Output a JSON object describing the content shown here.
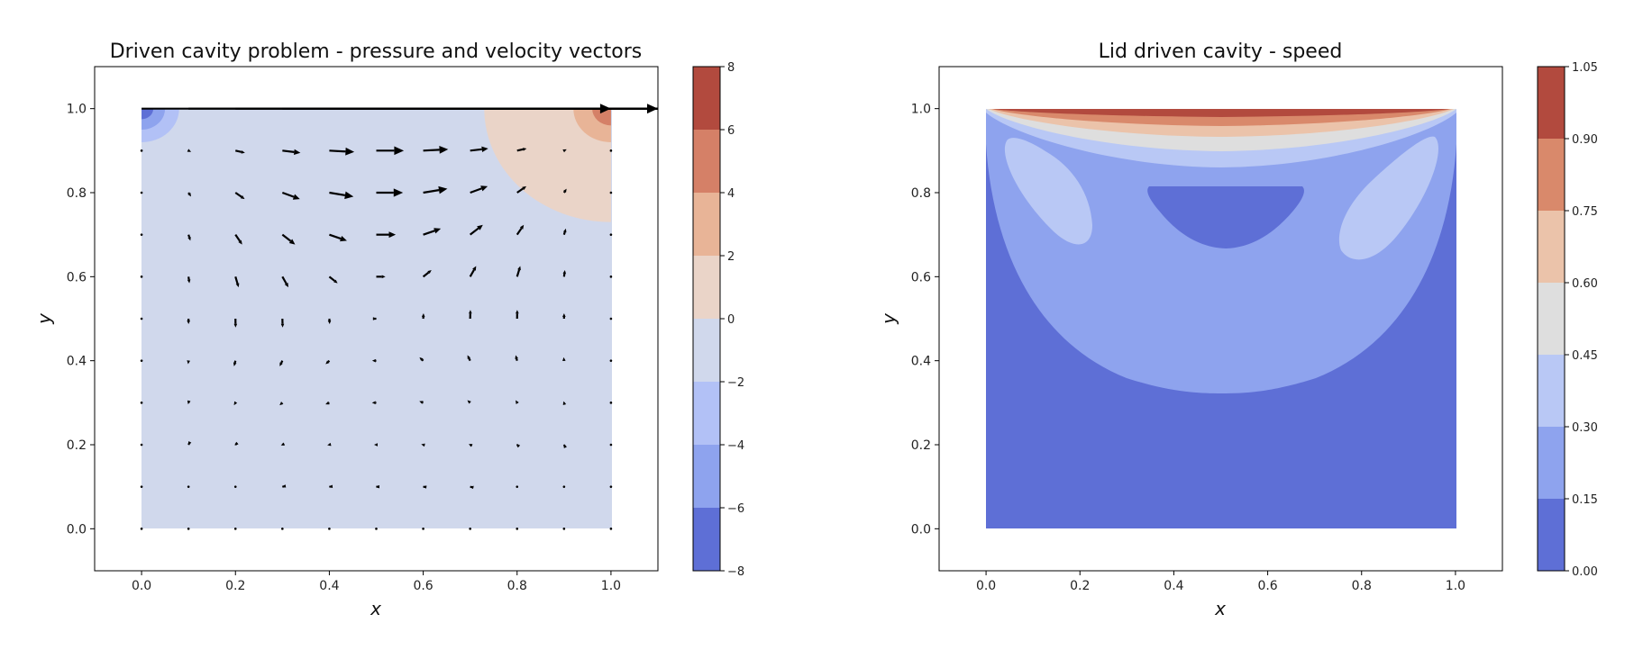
{
  "chart_data": [
    {
      "type": "contour",
      "title": "Driven cavity problem - pressure and velocity vectors",
      "xlabel": "x",
      "ylabel": "y",
      "xlim": [
        -0.1,
        1.1
      ],
      "ylim": [
        -0.1,
        1.1
      ],
      "xticks": [
        "0.0",
        "0.2",
        "0.4",
        "0.6",
        "0.8",
        "1.0"
      ],
      "yticks": [
        "0.0",
        "0.2",
        "0.4",
        "0.6",
        "0.8",
        "1.0"
      ],
      "grid": false,
      "colormap": "coolwarm",
      "colorbar": {
        "levels": [
          -8,
          -6,
          -4,
          -2,
          0,
          2,
          4,
          6,
          8
        ],
        "labels": [
          "−8",
          "−6",
          "−4",
          "−2",
          "0",
          "2",
          "4",
          "6",
          "8"
        ],
        "colors": [
          "#5e6fd6",
          "#8ea3ee",
          "#b2c1f6",
          "#d0d8ec",
          "#ead4c8",
          "#e8b497",
          "#d58067",
          "#b24a3e"
        ]
      },
      "background_level_color": "#d0d8ec",
      "pressure_regions": [
        {
          "corner": "top-left",
          "center": [
            0.0,
            1.0
          ],
          "radii": [
            0.08,
            0.05,
            0.025
          ],
          "colors": [
            "#b2c1f6",
            "#8ea3ee",
            "#5e6fd6"
          ]
        },
        {
          "corner": "top-right",
          "center": [
            1.0,
            1.0
          ],
          "radii": [
            0.27,
            0.08,
            0.04
          ],
          "colors": [
            "#ead4c8",
            "#e8b497",
            "#d58067"
          ]
        }
      ],
      "quiver_grid": {
        "x": [
          0.0,
          0.1,
          0.2,
          0.3,
          0.4,
          0.5,
          0.6,
          0.7,
          0.8,
          0.9,
          1.0
        ],
        "y": [
          0.0,
          0.1,
          0.2,
          0.3,
          0.4,
          0.5,
          0.6,
          0.7,
          0.8,
          0.9,
          1.0
        ]
      },
      "lid_velocity": 1.0
    },
    {
      "type": "contour",
      "title": "Lid driven cavity - speed",
      "xlabel": "x",
      "ylabel": "y",
      "xlim": [
        -0.1,
        1.1
      ],
      "ylim": [
        -0.1,
        1.1
      ],
      "xticks": [
        "0.0",
        "0.2",
        "0.4",
        "0.6",
        "0.8",
        "1.0"
      ],
      "yticks": [
        "0.0",
        "0.2",
        "0.4",
        "0.6",
        "0.8",
        "1.0"
      ],
      "grid": false,
      "colormap": "coolwarm",
      "colorbar": {
        "levels": [
          0.0,
          0.15,
          0.3,
          0.45,
          0.6,
          0.75,
          0.9,
          1.05
        ],
        "labels": [
          "0.00",
          "0.15",
          "0.30",
          "0.45",
          "0.60",
          "0.75",
          "0.90",
          "1.05"
        ],
        "colors": [
          "#5e6fd6",
          "#8ea3ee",
          "#b9c8f5",
          "#dedede",
          "#ebc3aa",
          "#d9896b",
          "#b24a3e"
        ]
      }
    }
  ]
}
